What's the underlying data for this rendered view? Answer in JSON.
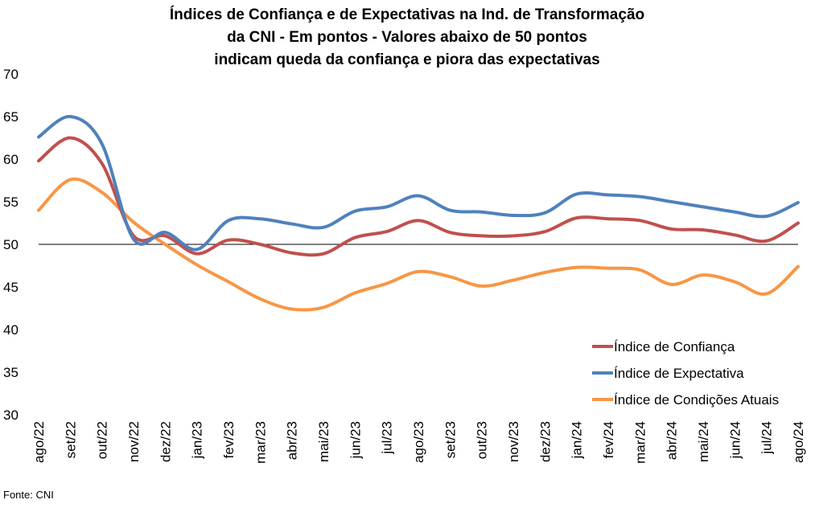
{
  "chart_data": {
    "type": "line",
    "title_lines": [
      "Índices de Confiança e de Expectativas na Ind. de Transformação",
      "da CNI - Em pontos - Valores abaixo de 50 pontos",
      "indicam queda da confiança e piora das expectativas"
    ],
    "categories": [
      "ago/22",
      "set/22",
      "out/22",
      "nov/22",
      "dez/22",
      "jan/23",
      "fev/23",
      "mar/23",
      "abr/23",
      "mai/23",
      "jun/23",
      "jul/23",
      "ago/23",
      "set/23",
      "out/23",
      "nov/23",
      "dez/23",
      "jan/24",
      "fev/24",
      "mar/24",
      "abr/24",
      "mai/24",
      "jun/24",
      "jul/24",
      "ago/24"
    ],
    "ylim": [
      30,
      70
    ],
    "yticks": [
      30,
      35,
      40,
      45,
      50,
      55,
      60,
      65,
      70
    ],
    "reference_line": 50,
    "grid": false,
    "legend_position": "bottom-right",
    "series": [
      {
        "name": "Índice de Confiança",
        "color": "#C0504D",
        "values": [
          59.8,
          62.5,
          59.5,
          51.0,
          51.0,
          48.9,
          50.5,
          50.0,
          49.0,
          48.9,
          50.8,
          51.5,
          52.8,
          51.4,
          51.0,
          51.0,
          51.5,
          53.1,
          53.0,
          52.8,
          51.8,
          51.7,
          51.1,
          50.4,
          52.5
        ]
      },
      {
        "name": "Índice de Expectativa",
        "color": "#4F81BD",
        "values": [
          62.6,
          65.0,
          61.8,
          50.6,
          51.4,
          49.4,
          52.8,
          53.0,
          52.4,
          52.0,
          53.9,
          54.4,
          55.7,
          54.0,
          53.8,
          53.4,
          53.7,
          55.9,
          55.8,
          55.6,
          55.0,
          54.4,
          53.8,
          53.3,
          54.9
        ]
      },
      {
        "name": "Índice de Condições Atuais",
        "color": "#F79646",
        "values": [
          54.0,
          57.6,
          56.1,
          52.6,
          50.0,
          47.6,
          45.6,
          43.6,
          42.4,
          42.6,
          44.3,
          45.4,
          46.8,
          46.2,
          45.1,
          45.8,
          46.7,
          47.3,
          47.2,
          47.0,
          45.3,
          46.4,
          45.6,
          44.2,
          47.4
        ]
      }
    ],
    "source": "Fonte: CNI"
  }
}
